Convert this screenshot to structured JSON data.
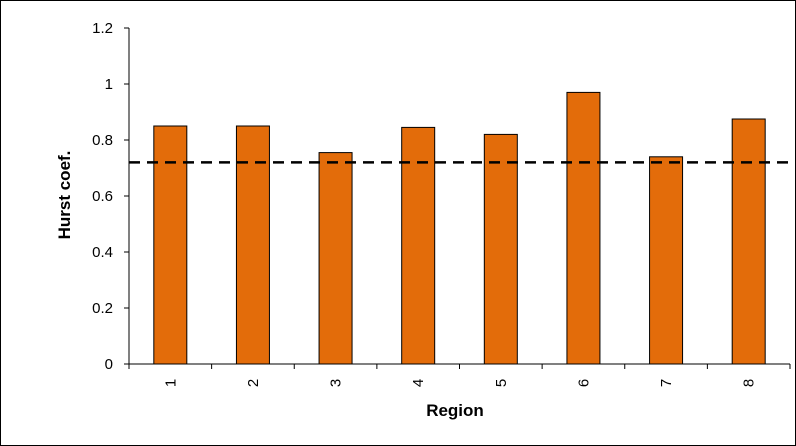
{
  "chart_data": {
    "type": "bar",
    "title": "",
    "xlabel": "Region",
    "ylabel": "Hurst coef.",
    "categories": [
      "1",
      "2",
      "3",
      "4",
      "5",
      "6",
      "7",
      "8"
    ],
    "values": [
      0.85,
      0.85,
      0.755,
      0.845,
      0.82,
      0.97,
      0.74,
      0.875
    ],
    "ylim": [
      0,
      1.2
    ],
    "yticks": [
      "0",
      "0.2",
      "0.4",
      "0.6",
      "0.8",
      "1",
      "1.2"
    ],
    "reference_line": {
      "value": 0.72,
      "style": "dashed"
    },
    "grid": false,
    "legend": "none",
    "colors": {
      "bar_fill": "#e36c0a",
      "bar_stroke": "#000000",
      "reference_line": "#000000",
      "axis": "#000000"
    }
  }
}
